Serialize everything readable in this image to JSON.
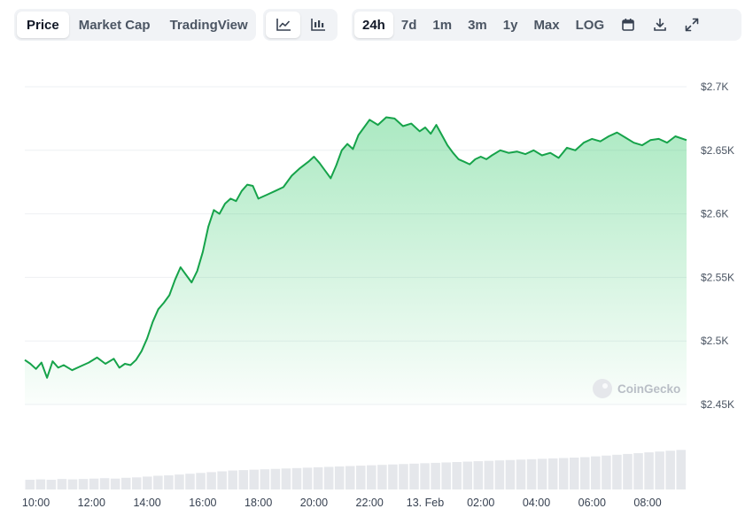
{
  "tabs": [
    {
      "label": "Price",
      "active": true
    },
    {
      "label": "Market Cap",
      "active": false
    },
    {
      "label": "TradingView",
      "active": false
    }
  ],
  "chart_type_buttons": [
    {
      "icon": "line-chart-icon",
      "active": true
    },
    {
      "icon": "candlestick-chart-icon",
      "active": false
    }
  ],
  "ranges": [
    {
      "label": "24h",
      "active": true
    },
    {
      "label": "7d",
      "active": false
    },
    {
      "label": "1m",
      "active": false
    },
    {
      "label": "3m",
      "active": false
    },
    {
      "label": "1y",
      "active": false
    },
    {
      "label": "Max",
      "active": false
    },
    {
      "label": "LOG",
      "active": false
    }
  ],
  "tools": [
    {
      "icon": "calendar-icon"
    },
    {
      "icon": "download-icon"
    },
    {
      "icon": "expand-icon"
    }
  ],
  "watermark": "CoinGecko",
  "colors": {
    "line": "#16a34a",
    "fill": "#22c55e",
    "volume": "#e5e7eb",
    "grid": "#eef0f3"
  },
  "chart_data": {
    "type": "area",
    "title": "",
    "xlabel": "",
    "ylabel": "",
    "ylim": [
      2450,
      2700
    ],
    "xlim": [
      9.6,
      33.4
    ],
    "y_ticks": [
      2450,
      2500,
      2550,
      2600,
      2650,
      2700
    ],
    "y_tick_labels": [
      "$2.45K",
      "$2.5K",
      "$2.55K",
      "$2.6K",
      "$2.65K",
      "$2.7K"
    ],
    "x_ticks": [
      10,
      12,
      14,
      16,
      18,
      20,
      22,
      24,
      26,
      28,
      30,
      32
    ],
    "x_tick_labels": [
      "10:00",
      "12:00",
      "14:00",
      "16:00",
      "18:00",
      "20:00",
      "22:00",
      "13. Feb",
      "02:00",
      "04:00",
      "06:00",
      "08:00"
    ],
    "grid": true,
    "series": [
      {
        "x": [
          9.6,
          9.8,
          10.0,
          10.2,
          10.4,
          10.6,
          10.8,
          11.0,
          11.3,
          11.6,
          11.9,
          12.2,
          12.5,
          12.8,
          13.0,
          13.2,
          13.4,
          13.6,
          13.8,
          14.0,
          14.2,
          14.4,
          14.6,
          14.8,
          15.0,
          15.2,
          15.4,
          15.6,
          15.8,
          16.0,
          16.2,
          16.4,
          16.6,
          16.8,
          17.0,
          17.2,
          17.4,
          17.6,
          17.8,
          18.0,
          18.3,
          18.6,
          18.9,
          19.2,
          19.5,
          19.8,
          20.0,
          20.2,
          20.4,
          20.6,
          20.8,
          21.0,
          21.2,
          21.4,
          21.6,
          21.8,
          22.0,
          22.3,
          22.6,
          22.9,
          23.2,
          23.5,
          23.8,
          24.0,
          24.2,
          24.4,
          24.6,
          24.8,
          25.0,
          25.2,
          25.4,
          25.6,
          25.8,
          26.0,
          26.2,
          26.4,
          26.7,
          27.0,
          27.3,
          27.6,
          27.9,
          28.2,
          28.5,
          28.8,
          29.1,
          29.4,
          29.7,
          30.0,
          30.3,
          30.6,
          30.9,
          31.2,
          31.5,
          31.8,
          32.1,
          32.4,
          32.7,
          33.0,
          33.4
        ],
        "y": [
          2485,
          2482,
          2478,
          2483,
          2471,
          2484,
          2479,
          2481,
          2477,
          2480,
          2483,
          2487,
          2482,
          2486,
          2479,
          2482,
          2481,
          2485,
          2492,
          2502,
          2515,
          2525,
          2530,
          2536,
          2548,
          2558,
          2552,
          2546,
          2555,
          2570,
          2590,
          2603,
          2600,
          2608,
          2612,
          2610,
          2618,
          2623,
          2622,
          2612,
          2615,
          2618,
          2621,
          2630,
          2636,
          2641,
          2645,
          2640,
          2634,
          2628,
          2638,
          2650,
          2655,
          2651,
          2662,
          2668,
          2674,
          2670,
          2676,
          2675,
          2669,
          2671,
          2665,
          2668,
          2663,
          2670,
          2662,
          2654,
          2648,
          2643,
          2641,
          2639,
          2643,
          2645,
          2643,
          2646,
          2650,
          2648,
          2649,
          2647,
          2650,
          2646,
          2648,
          2644,
          2652,
          2650,
          2656,
          2659,
          2657,
          2661,
          2664,
          2660,
          2656,
          2654,
          2658,
          2659,
          2656,
          2661,
          2658
        ]
      }
    ],
    "volume_levels": [
      0.24,
      0.25,
      0.24,
      0.26,
      0.25,
      0.26,
      0.27,
      0.28,
      0.27,
      0.29,
      0.3,
      0.32,
      0.34,
      0.35,
      0.37,
      0.39,
      0.41,
      0.43,
      0.45,
      0.47,
      0.48,
      0.49,
      0.5,
      0.51,
      0.52,
      0.53,
      0.54,
      0.55,
      0.56,
      0.57,
      0.58,
      0.59,
      0.6,
      0.61,
      0.62,
      0.63,
      0.64,
      0.65,
      0.66,
      0.67,
      0.68,
      0.69,
      0.7,
      0.71,
      0.72,
      0.73,
      0.74,
      0.75,
      0.76,
      0.77,
      0.78,
      0.79,
      0.8,
      0.82,
      0.84,
      0.86,
      0.88,
      0.9,
      0.92,
      0.94,
      0.96,
      0.98
    ]
  }
}
